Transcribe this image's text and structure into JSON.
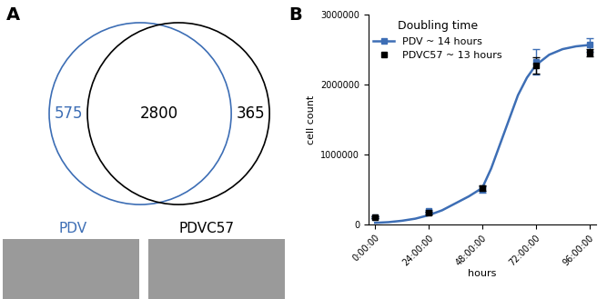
{
  "chart_data": [
    {
      "type": "venn",
      "panel": "A",
      "sets": [
        {
          "name": "PDV",
          "color": "#3d6eb5",
          "only": 575
        },
        {
          "name": "PDVC57",
          "color": "#000000",
          "only": 365
        }
      ],
      "intersection": 2800
    },
    {
      "type": "line",
      "panel": "B",
      "legend_title": "Doubling time",
      "legend": "upper left",
      "x_label": "hours",
      "y_label": "cell count",
      "xlim": [
        -3,
        99
      ],
      "xticks": [
        {
          "value": 0,
          "label": "0:00:00"
        },
        {
          "value": 24,
          "label": "24:00:00"
        },
        {
          "value": 48,
          "label": "48:00:00"
        },
        {
          "value": 72,
          "label": "72:00:00"
        },
        {
          "value": 96,
          "label": "96:00:00"
        }
      ],
      "ylim": [
        0,
        3000000
      ],
      "yticks": [
        0,
        1000000,
        2000000,
        3000000
      ],
      "series": [
        {
          "name": "PDV ~ 14 hours",
          "type": "scatter",
          "color": "#3d6eb5",
          "marker": "square",
          "x": [
            0,
            24,
            48,
            72,
            96
          ],
          "values": [
            100000,
            190000,
            500000,
            2330000,
            2570000
          ],
          "errors": [
            10000,
            20000,
            50000,
            180000,
            100000
          ]
        },
        {
          "name": "PDVC57 ~ 13 hours",
          "type": "scatter",
          "color": "#000000",
          "marker": "square",
          "x": [
            0,
            24,
            48,
            72,
            96
          ],
          "values": [
            100000,
            160000,
            520000,
            2280000,
            2460000
          ],
          "errors": [
            10000,
            15000,
            40000,
            120000,
            50000
          ]
        },
        {
          "type": "line",
          "color": "#3d6eb5",
          "line_style": "solid",
          "x": [
            0,
            6,
            12,
            18,
            24,
            30,
            36,
            42,
            48,
            52,
            56,
            60,
            64,
            68,
            72,
            78,
            84,
            90,
            96
          ],
          "values": [
            20000,
            30000,
            50000,
            80000,
            130000,
            200000,
            300000,
            400000,
            520000,
            800000,
            1150000,
            1500000,
            1850000,
            2100000,
            2280000,
            2430000,
            2510000,
            2550000,
            2570000
          ]
        }
      ]
    }
  ]
}
